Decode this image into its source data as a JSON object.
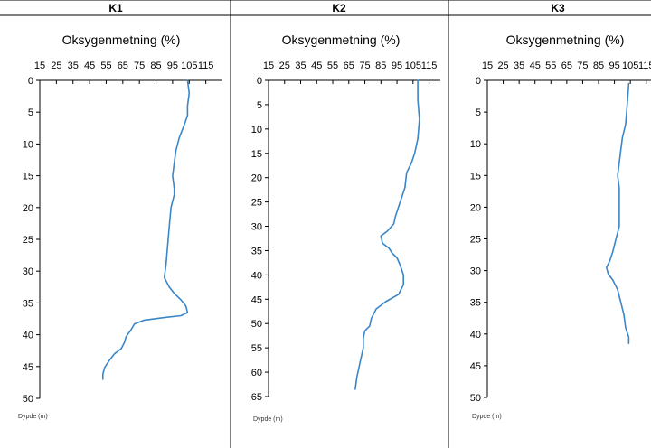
{
  "chart_data": [
    {
      "type": "line",
      "panel": "K1",
      "title": "Oksygenmetning (%)",
      "xlabel": "Oksygenmetning (%)",
      "ylabel": "Dypde (m)",
      "xlim": [
        15,
        125
      ],
      "ylim": [
        0,
        50
      ],
      "y_inverted": true,
      "x_axis_position": "top",
      "x_ticks": [
        15,
        25,
        35,
        45,
        55,
        65,
        75,
        85,
        95,
        105,
        115
      ],
      "y_ticks": [
        0,
        5,
        10,
        15,
        20,
        25,
        30,
        35,
        40,
        45,
        50
      ],
      "grid": false,
      "series": [
        {
          "color": "#3a86c8",
          "points": [
            {
              "x": 104,
              "y": 0
            },
            {
              "x": 105,
              "y": 2
            },
            {
              "x": 104,
              "y": 4
            },
            {
              "x": 104,
              "y": 5.5
            },
            {
              "x": 102,
              "y": 7
            },
            {
              "x": 99,
              "y": 9
            },
            {
              "x": 97,
              "y": 11
            },
            {
              "x": 96,
              "y": 13
            },
            {
              "x": 95,
              "y": 15
            },
            {
              "x": 96,
              "y": 17
            },
            {
              "x": 96,
              "y": 18
            },
            {
              "x": 94,
              "y": 20
            },
            {
              "x": 93,
              "y": 23
            },
            {
              "x": 92,
              "y": 26
            },
            {
              "x": 91,
              "y": 29
            },
            {
              "x": 90,
              "y": 31
            },
            {
              "x": 93,
              "y": 32.5
            },
            {
              "x": 96,
              "y": 33.5
            },
            {
              "x": 100,
              "y": 34.5
            },
            {
              "x": 103,
              "y": 35.5
            },
            {
              "x": 104,
              "y": 36.5
            },
            {
              "x": 100,
              "y": 37
            },
            {
              "x": 90,
              "y": 37.3
            },
            {
              "x": 78,
              "y": 37.7
            },
            {
              "x": 72,
              "y": 38.3
            },
            {
              "x": 70,
              "y": 39.2
            },
            {
              "x": 67,
              "y": 40.3
            },
            {
              "x": 66,
              "y": 41.2
            },
            {
              "x": 64,
              "y": 42.2
            },
            {
              "x": 60,
              "y": 43
            },
            {
              "x": 57,
              "y": 44
            },
            {
              "x": 54,
              "y": 45.2
            },
            {
              "x": 53,
              "y": 46.2
            },
            {
              "x": 53,
              "y": 47
            }
          ]
        }
      ]
    },
    {
      "type": "line",
      "panel": "K2",
      "title": "Oksygenmetning (%)",
      "xlabel": "Oksygenmetning (%)",
      "ylabel": "Dypde (m)",
      "xlim": [
        15,
        122
      ],
      "ylim": [
        0,
        65
      ],
      "y_inverted": true,
      "x_axis_position": "top",
      "x_ticks": [
        15,
        25,
        35,
        45,
        55,
        65,
        75,
        85,
        95,
        105,
        115
      ],
      "y_ticks": [
        0,
        5,
        10,
        15,
        20,
        25,
        30,
        35,
        40,
        45,
        50,
        55,
        60,
        65
      ],
      "grid": false,
      "series": [
        {
          "color": "#3a86c8",
          "points": [
            {
              "x": 108,
              "y": 0
            },
            {
              "x": 108,
              "y": 4
            },
            {
              "x": 109,
              "y": 8
            },
            {
              "x": 108,
              "y": 12
            },
            {
              "x": 106,
              "y": 15
            },
            {
              "x": 104,
              "y": 17
            },
            {
              "x": 101,
              "y": 19
            },
            {
              "x": 100,
              "y": 22
            },
            {
              "x": 98,
              "y": 24
            },
            {
              "x": 96,
              "y": 26
            },
            {
              "x": 94,
              "y": 28
            },
            {
              "x": 93,
              "y": 29.5
            },
            {
              "x": 89,
              "y": 31
            },
            {
              "x": 85,
              "y": 32
            },
            {
              "x": 86,
              "y": 33.5
            },
            {
              "x": 90,
              "y": 34.5
            },
            {
              "x": 92,
              "y": 35.5
            },
            {
              "x": 95,
              "y": 36.5
            },
            {
              "x": 97,
              "y": 38
            },
            {
              "x": 99,
              "y": 40
            },
            {
              "x": 99,
              "y": 42
            },
            {
              "x": 96,
              "y": 44
            },
            {
              "x": 88,
              "y": 45.5
            },
            {
              "x": 82,
              "y": 47
            },
            {
              "x": 79,
              "y": 49
            },
            {
              "x": 78,
              "y": 50.5
            },
            {
              "x": 75,
              "y": 51.5
            },
            {
              "x": 74,
              "y": 53
            },
            {
              "x": 74,
              "y": 55
            },
            {
              "x": 72,
              "y": 58
            },
            {
              "x": 70,
              "y": 61
            },
            {
              "x": 69,
              "y": 63.5
            }
          ]
        }
      ]
    },
    {
      "type": "line",
      "panel": "K3",
      "title": "Oksygenmetning (%)",
      "xlabel": "Oksygenmetning (%)",
      "ylabel": "Dypde (m)",
      "xlim": [
        15,
        118
      ],
      "ylim": [
        0,
        50
      ],
      "y_inverted": true,
      "x_axis_position": "top",
      "x_ticks": [
        15,
        25,
        35,
        45,
        55,
        65,
        75,
        85,
        95,
        105,
        115
      ],
      "y_ticks": [
        0,
        5,
        10,
        15,
        20,
        25,
        30,
        35,
        40,
        45,
        50
      ],
      "grid": false,
      "series": [
        {
          "color": "#3a86c8",
          "points": [
            {
              "x": 104,
              "y": 0.5
            },
            {
              "x": 103,
              "y": 4
            },
            {
              "x": 102,
              "y": 7
            },
            {
              "x": 100,
              "y": 9
            },
            {
              "x": 99,
              "y": 11
            },
            {
              "x": 98,
              "y": 13
            },
            {
              "x": 97,
              "y": 15
            },
            {
              "x": 98,
              "y": 17
            },
            {
              "x": 98,
              "y": 20
            },
            {
              "x": 98,
              "y": 23
            },
            {
              "x": 96,
              "y": 25
            },
            {
              "x": 94,
              "y": 27
            },
            {
              "x": 92,
              "y": 28.5
            },
            {
              "x": 90,
              "y": 29.5
            },
            {
              "x": 91,
              "y": 30.5
            },
            {
              "x": 94,
              "y": 31.5
            },
            {
              "x": 97,
              "y": 33
            },
            {
              "x": 99,
              "y": 35
            },
            {
              "x": 101,
              "y": 37
            },
            {
              "x": 102,
              "y": 39
            },
            {
              "x": 104,
              "y": 40.5
            },
            {
              "x": 104,
              "y": 41.5
            }
          ]
        }
      ]
    }
  ]
}
